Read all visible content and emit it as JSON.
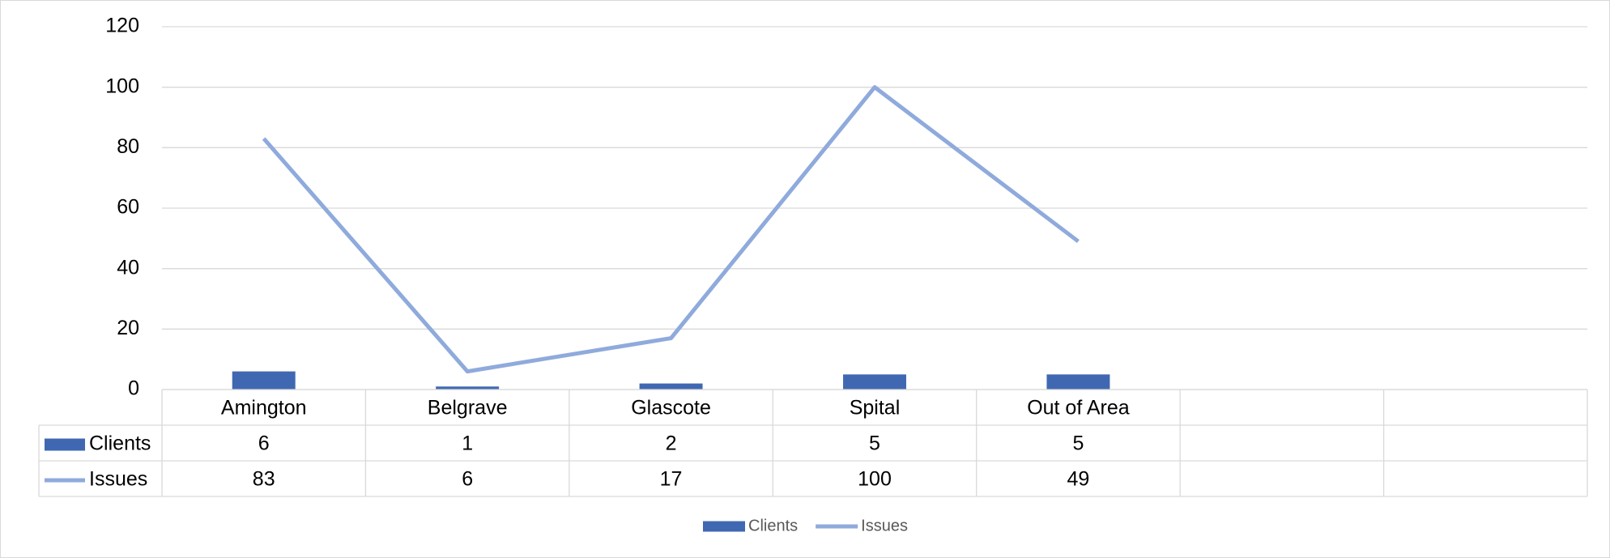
{
  "chart_data": {
    "type": "combo",
    "categories": [
      "Amington",
      "Belgrave",
      "Glascote",
      "Spital",
      "Out of Area",
      null,
      null
    ],
    "series": [
      {
        "name": "Clients",
        "type": "bar",
        "color": "#4068b2",
        "values": [
          6,
          1,
          2,
          5,
          5,
          null,
          null
        ]
      },
      {
        "name": "Issues",
        "type": "line",
        "color": "#8faadc",
        "values": [
          83,
          6,
          17,
          100,
          49,
          null,
          null
        ]
      }
    ],
    "ylim": [
      0,
      120
    ],
    "yticks": [
      0,
      20,
      40,
      60,
      80,
      100,
      120
    ],
    "grid": true,
    "data_table": true,
    "legend": "bottom"
  }
}
